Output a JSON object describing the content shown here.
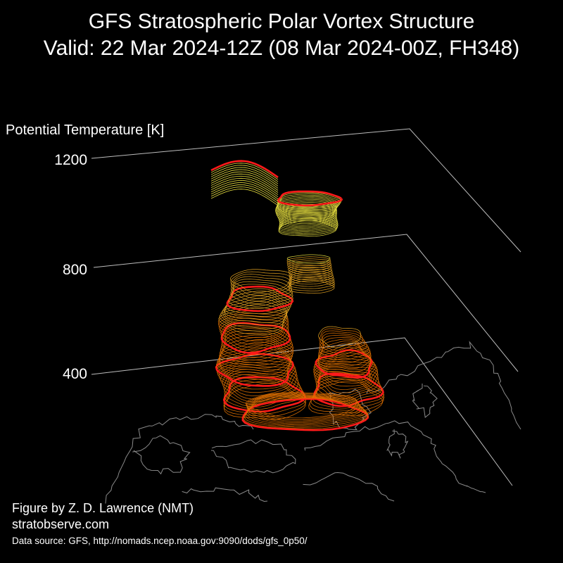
{
  "figure": {
    "title_line_1": "GFS Stratospheric Polar Vortex Structure",
    "title_line_2": "Valid: 22 Mar 2024-12Z  (08 Mar 2024-00Z, FH348)",
    "z_axis_label": "Potential Temperature [K]",
    "credit_line_1": "Figure by Z. D. Lawrence (NMT)",
    "credit_line_2": "stratobserve.com",
    "data_source": "Data source: GFS, http://nomads.ncep.noaa.gov:9090/dods/gfs_0p50/"
  },
  "chart_data": {
    "type": "3d-isosurface",
    "z_axis": {
      "label": "Potential Temperature [K]",
      "ticks": [
        400,
        800,
        1200
      ]
    },
    "colors": {
      "background": "#000000",
      "axes": "#bdbdbd",
      "coastlines": "#8a8a8a",
      "vortex_edge": "#ff1a1a",
      "contour_low": "#e07000",
      "contour_mid": "#e0a020",
      "contour_high": "#e8e040"
    }
  }
}
